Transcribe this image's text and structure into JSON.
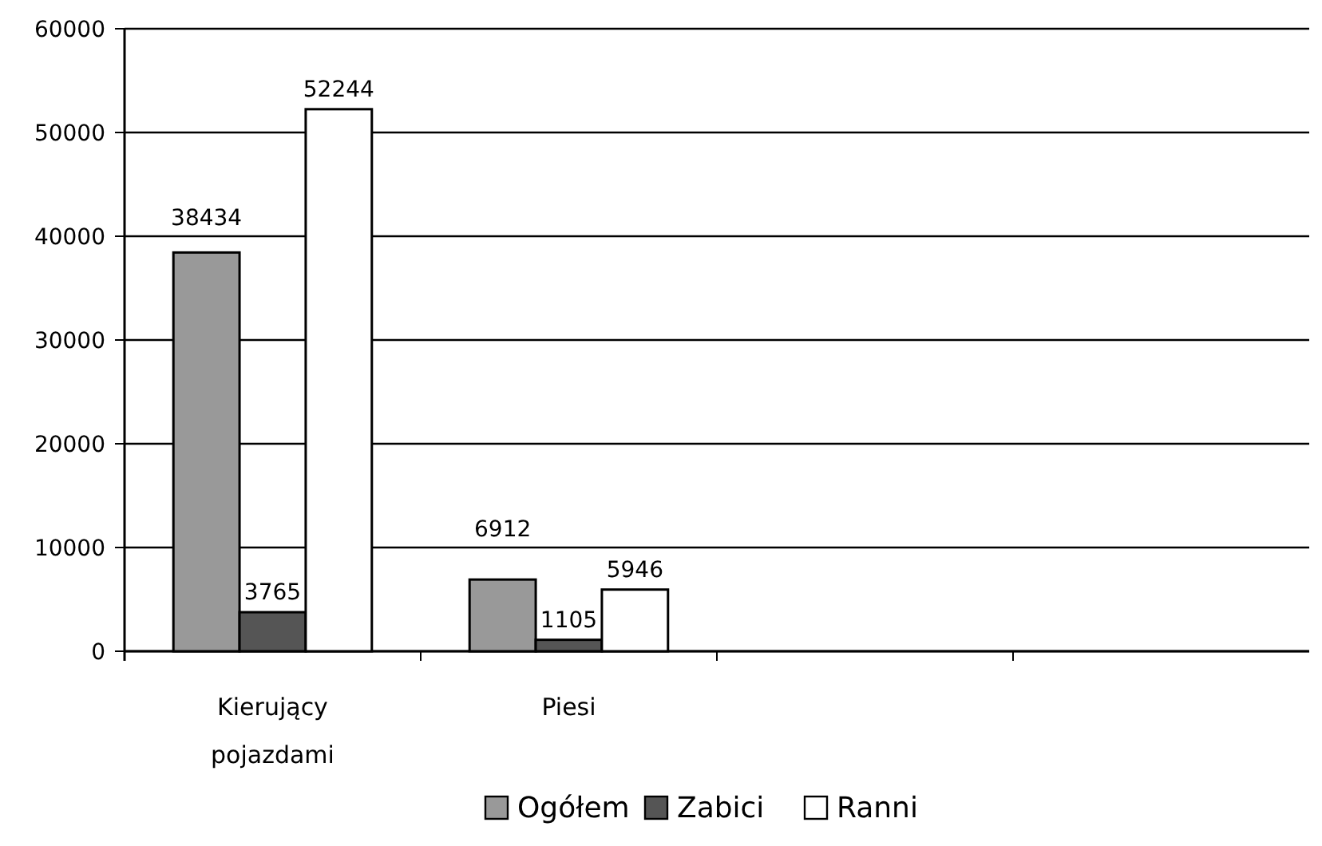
{
  "chart_data": {
    "type": "bar",
    "categories": [
      "Kierujący pojazdami",
      "Piesi",
      null,
      null
    ],
    "series": [
      {
        "name": "Ogółem",
        "color": "#999999",
        "values": [
          38434,
          6912,
          null,
          null
        ]
      },
      {
        "name": "Zabici",
        "color": "#555555",
        "values": [
          3765,
          1105,
          null,
          null
        ]
      },
      {
        "name": "Ranni",
        "color": "#ffffff",
        "values": [
          52244,
          5946,
          null,
          null
        ]
      }
    ],
    "ylim": [
      0,
      60000
    ],
    "yticks": [
      0,
      10000,
      20000,
      30000,
      40000,
      50000,
      60000
    ],
    "grid": "y",
    "legend": "bottom",
    "data_labels": true
  }
}
